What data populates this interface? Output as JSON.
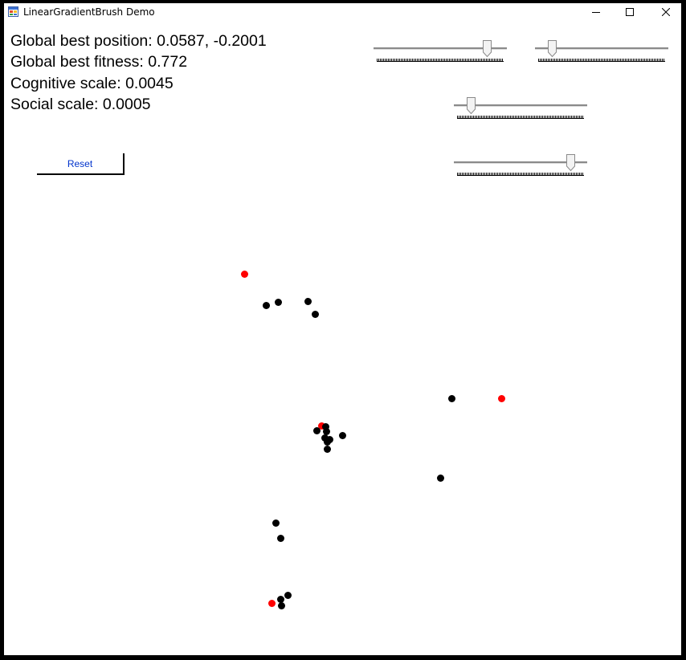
{
  "window": {
    "title": "LinearGradientBrush Demo",
    "icon": "winforms-app-icon"
  },
  "stats": {
    "global_best_position": "Global best position: 0.0587, -0.2001",
    "global_best_fitness": "Global best fitness: 0.772",
    "cognitive_scale": "Cognitive scale: 0.0045",
    "social_scale": "Social scale: 0.0005"
  },
  "controls": {
    "reset_label": "Reset"
  },
  "sliders": [
    {
      "name": "slider-1",
      "value_fraction": 0.88
    },
    {
      "name": "slider-2",
      "value_fraction": 0.1
    },
    {
      "name": "slider-3",
      "value_fraction": 0.1
    },
    {
      "name": "slider-4",
      "value_fraction": 0.9
    }
  ],
  "colors": {
    "particle": "#000000",
    "best": "#ff0000"
  }
}
